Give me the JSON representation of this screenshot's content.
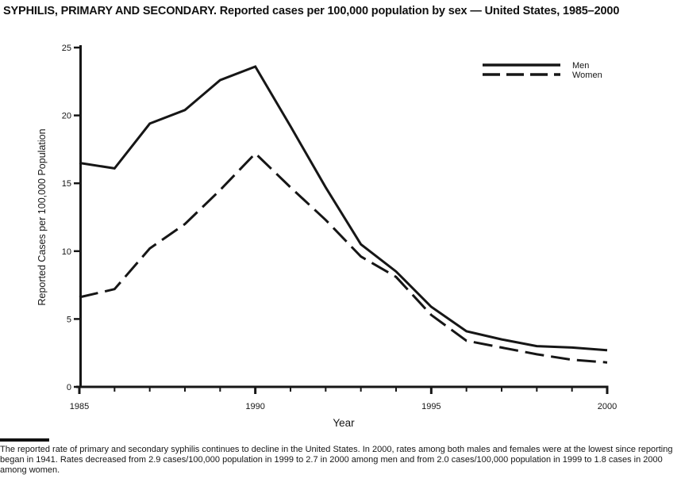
{
  "title": "SYPHILIS, PRIMARY AND SECONDARY. Reported cases per 100,000 population by sex — United States, 1985–2000",
  "chart_data": {
    "type": "line",
    "x": [
      1985,
      1986,
      1987,
      1988,
      1989,
      1990,
      1991,
      1992,
      1993,
      1994,
      1995,
      1996,
      1997,
      1998,
      1999,
      2000
    ],
    "series": [
      {
        "name": "Men",
        "style": "solid",
        "values": [
          16.5,
          16.1,
          19.4,
          20.4,
          22.6,
          23.6,
          19.2,
          14.7,
          10.5,
          8.5,
          5.9,
          4.1,
          3.5,
          3.0,
          2.9,
          2.7
        ]
      },
      {
        "name": "Women",
        "style": "dashed",
        "values": [
          6.6,
          7.2,
          10.2,
          12.0,
          14.5,
          17.2,
          14.7,
          12.3,
          9.6,
          8.1,
          5.3,
          3.4,
          2.9,
          2.4,
          2.0,
          1.8
        ]
      }
    ],
    "xlabel": "Year",
    "ylabel": "Reported Cases per 100,000 Population",
    "xlim": [
      1985,
      2000
    ],
    "ylim": [
      0,
      25
    ],
    "yticks": [
      0,
      5,
      10,
      15,
      20,
      25
    ],
    "xticks_major": [
      1985,
      1990,
      1995,
      2000
    ],
    "xticks_minor_every": 1,
    "grid": false,
    "legend_position": "top-right"
  },
  "footer": {
    "text": "The reported rate of primary and secondary syphilis continues to decline in the United States. In 2000, rates among both males and females were at the lowest since reporting began in 1941. Rates decreased from 2.9 cases/100,000 population in 1999 to 2.7 in 2000 among men and from 2.0 cases/100,000 population in 1999 to 1.8 cases in 2000 among women."
  },
  "colors": {
    "line": "#161616",
    "text": "#161616",
    "background": "#ffffff"
  }
}
